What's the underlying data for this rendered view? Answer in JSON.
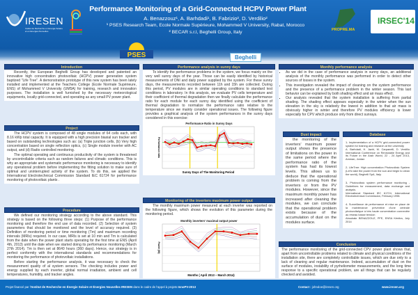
{
  "header": {
    "title": "Performance Monitoring of a Grid-Connected HCPV Power Plant",
    "authors": "A. Benazzouz¹, A. Barhdadi¹, B. Fabrizio², D. Verdilio²",
    "affiliation1": "¹ PSES Research Team, Ecole Normale Supérieure, Mohammed V University, Rabat, Morocco",
    "affiliation2": "² BECAR s.r.l, Beghelli Group, Italy",
    "logos": {
      "iresen": "IRESEN",
      "iresen_sub": "Institut de Recherche en Energie Solaire et en Energies Nouvelles",
      "propre": "PROPRE.MA",
      "irsec": "IRSEC'14",
      "pses": "PSES",
      "beghelli": "Beghelli"
    }
  },
  "colors": {
    "header": "#0f5aa8",
    "section_heading": "#1f4a8f",
    "heading_text": "#f3d36b",
    "background": "#dfe9f6",
    "footer": "#0e6cbf"
  },
  "left": {
    "intro_title": "Introduction",
    "intro": "Recently, the European Beghelli Group has developed and patented an innovative high concentration photovoltaic (HCPV) power generation system baptized \"Life Tree\". A demonstration prototype of this new system has been lately installed and implemented at the Teachers College (Ecole Normale Supérieure, ENS) of Mohammed V University (UM5A) for training, research and innovation purposes. The installation is well furnished by the necessary meteorological equipments, locally grid-connected, and operating as any small PV power plant.",
    "project_title": "Project",
    "project_p1": "The HCPV system is composed of 48 single modules of 64 cells each, with 8.16 kWp total capacity. It is equipped with a high precision biaxial sun tracker and based on outstanding technologies such as: (a) Triple junction cells, (b) Very high concentration based on single reflection optics, (c) Single module inverter with AC output, and (d) Radio controlled monitoring.",
    "project_p2": "The optimal operating and continuous productivity of the system is threatened by uncontrollable criteria such as random failures and climatic conditions. This is why an appropriate and systematic performance monitoring is necessary to identify any operational problem before implementing the fitting solution to make sure of optimal and uninterrupted activity of the system. To do this, we applied the International Electrotechnical Commission Standard IEC 61724 for performance monitoring of photovoltaic plants .",
    "procedure_title": "Procedure",
    "procedure_p1": "We defined our monitoring strategy according to the above standard. This strategy is based on the following three steps: (1) Purpose of the performance monitoring and therefore the end use of data recorded. (2) Selection of system parameters that should be monitored and the level of accuracy required. (3) Definition of monitoring period or time monitoring (Tm) and maximum recording intervals (MRIs) required. In our case, MRIs is set at 10 min and Tm is calculated from the date when the power plant starts operating for the first time at ENS (April 4th, 2013) until the date when we started doing its performance monitoring (March 27th 2014). Tm is then set at 8640 hours (360 days). Hence, our strategy is in perfect conformity with the international standards and recommendations for monitoring the performance of photovoltaic installations.",
    "procedure_p2": "Before starting the performance analysis, it was necessary to check the measurement quality of al system sensors. The checking includes power and energy supplied by each inverter, global normal irradiation, ambient and cell temperatures, humidity, and tracker angles."
  },
  "middle": {
    "sunny_title": "Performance analysis in sunny days",
    "sunny_text": "To identify the performance problems in the system, we focus mainly on the very well sunny days of the year. Those can be easily identified by historical measurements of DNI and daily power supplied by the system. For these sunny days, the measurements recorded between 11h and 15h are collected. During this period, PV modules are in similar operating conditions to standard test conditions in laboratory. In this analysis, we evaluate PV cells temperature and their coefficient of thermal degradation then we finally calculate the performance ratio for each module for each sunny day identified using the coefficient of thermal degradation to normalize the performance ratio relative to the temperature since we mainly consider operational issues. The following figure provides a graphical analysis of the system performances in the sunny days considered in this exercise:",
    "inverters_title": "Monitoring of the inverters maximum power output",
    "inverters_text": "The monthly maximum power measured at each inverter was reported on the following figure, which shows the evolution of this parameter during the monitoring period."
  },
  "chart_data": [
    {
      "type": "line",
      "title": "Performance Ratio in Sunny Days",
      "xlabel": "Sunny Days of The Monitoring Period",
      "ylabel": "Performance ratio",
      "grid": true,
      "series": [
        {
          "values": [
            0.98,
            0.93,
            0.97,
            0.94,
            0.99,
            1.04,
            1.02,
            0.86,
            0.89,
            0.9,
            0.91,
            0.89,
            1.12,
            1.17,
            0.96,
            0.95,
            0.96,
            0.94,
            0.95,
            0.93
          ]
        }
      ],
      "reference_level": 0.97
    },
    {
      "type": "line",
      "title": "Monthly inverters' maximal output power",
      "xlabel": "Months ( April 2013 – March 2014)",
      "ylabel": "Power (W)",
      "grid": true,
      "series": [
        {
          "values": [
            165,
            166,
            172,
            155,
            145,
            160,
            172,
            172,
            170,
            166,
            168,
            168
          ]
        }
      ]
    }
  ],
  "right": {
    "monthly_title": "Monthly performance analysis",
    "monthly_items": [
      "As we did in the case of performance analysis in sunny days, an additional analysis of the monthly performance was performed in order to detect other sources of losses in the system.",
      "This investigation revealed the impact of cleaning on the system performance and the presence of a performance problem in the winter season. This last behavior can be explained by both shading effect and air mass effect.",
      "Our analysis revealed that the system installation is suffering from partial shading. The shading effect appears especially in the winter when the sun elevation in the sky is relatively the lowest in addition to that air mass is obviously higher in winter and therefore PV modules efficiency is lower especially for CPV which produce only from direct sunrays."
    ],
    "dust_title": "Dust impact",
    "dust_text": "the monitoring of the inverters' maximum power output shows the presence of limitations on the power in the same period where the performance ratio of the system has had its lowest levels. This allows us to deduce that the operational problem is coming from the inverters or from the PV modules. However, since the maximum monthly power has increased after cleaning the modules, we can conclude that the operational problem exists because of the accumulation of dust on the modules surface.",
    "database_title": "Database",
    "database_items": [
      "1- Implementation of a HCPV grid-connected power system for training and research at the university\nA. Barhdadi, H. Jaziri, M. Carpanelli, D. Verdilio International Conference on Renewable Energy and its Future in the Arab World, 22 - 24 April 2013, Amman, Jordan",
      "2- LifeTree: High concentration Photovoltaic System (Let's take the power from the sun and begin to clean the world), Beghelli SpA, Italy.",
      "3- Photovoltaic system performance monitoring - Guidelines for measurement, data exchange and analysis.\nInternational Standard IEC 61724, International Electrotechnical Commission, February 1998.",
      "4- Surveillance de performance et mise en place de la maintenance préventive d'une centrale photovoltaïque à très haute concentration connectée au réseau basse tension\nAboubakr BENAZZOUZ, PFE, ENSA Kénitra, July 2014"
    ],
    "conclusion_title": "Conclusion",
    "conclusion_text": "The performance monitoring of the grid-connected CPV power plant shows that, apart from uncontrollable problems related to climate and physical conditions of the installation site, there are completely controllable issues, which are due only to a lack of cleaning and regular maintenance. Indeed, accumulation of dust on the surface of modules, instability of pyrheliometer measurements, and the long time response to a specific operational problem, are all things that can be regularly checked and avoided."
  },
  "footer": {
    "funding_prefix": "Projet financé par l'",
    "funding_org": "Institut de Recherche en Énergie Solaire et Énergies Nouvelles IRESEN",
    "funding_mid": " dans le cadre de l'appel à projets ",
    "funding_call": "InnoPV-2013",
    "contact_label": "Contact : ",
    "contact_email": "johndoe@iresen.org",
    "website": "www.iresen.org"
  }
}
